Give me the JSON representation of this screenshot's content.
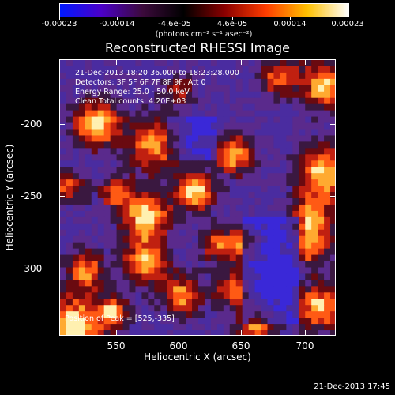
{
  "colorbar": {
    "tick_labels": [
      "-0.00023",
      "-0.00014",
      "-4.6e-05",
      "4.6e-05",
      "0.00014",
      "0.00023"
    ],
    "units": "(photons cm⁻² s⁻¹ asec⁻²)",
    "gradient_colors": [
      "#0019ff",
      "#4b00c8",
      "#3c0a3c",
      "#000000",
      "#8a0000",
      "#ff3c00",
      "#ffc000",
      "#ffffff"
    ]
  },
  "image": {
    "title": "Reconstructed RHESSI Image",
    "annotations": [
      "21-Dec-2013 18:20:36.000 to 18:23:28.000",
      "Detectors: 3F 5F 6F 7F 8F 9F, Att 0",
      "Energy Range: 25.0 - 50.0 keV",
      "Clean    Total counts: 4.20E+03"
    ],
    "peak_label": "Position of Peak = [525,-335]"
  },
  "axes": {
    "xlabel": "Heliocentric X (arcsec)",
    "ylabel": "Heliocentric Y (arcsec)",
    "x_ticks": [
      "550",
      "600",
      "650",
      "700"
    ],
    "y_ticks": [
      "-200",
      "-250",
      "-300"
    ]
  },
  "footer": {
    "timestamp": "21-Dec-2013 17:45"
  }
}
